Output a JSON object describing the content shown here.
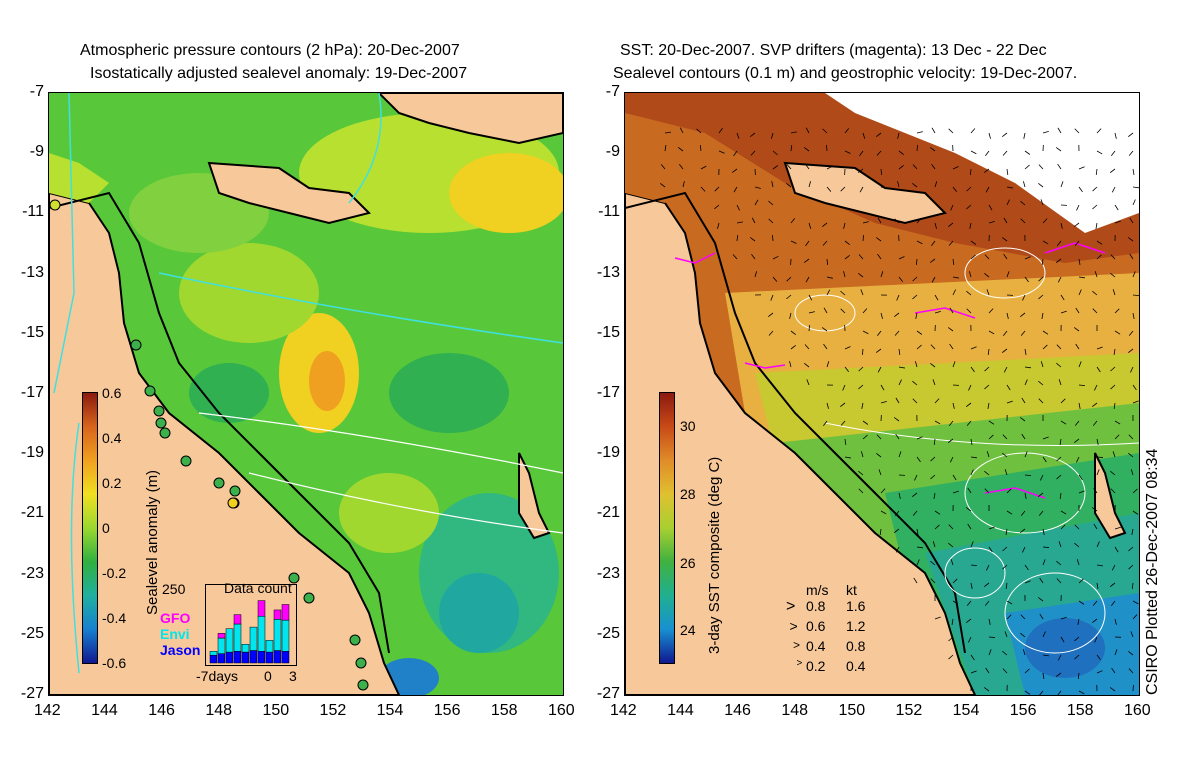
{
  "left_panel": {
    "title_line1": "Atmospheric pressure contours (2 hPa): 20-Dec-2007",
    "title_line2": "Isostatically adjusted sealevel anomaly: 19-Dec-2007",
    "colorbar_label": "Sealevel anomaly (m)",
    "colorbar_ticks": [
      "0.6",
      "0.4",
      "0.2",
      "0",
      "-0.2",
      "-0.4",
      "-0.6"
    ],
    "inset": {
      "title": "Data count",
      "ymax_label": "250",
      "x_labels": [
        "-7days",
        "0",
        "3"
      ],
      "legend": [
        {
          "name": "GFO",
          "color": "#ff00ff"
        },
        {
          "name": "Envi",
          "color": "#00e5ee"
        },
        {
          "name": "Jason",
          "color": "#0000ff"
        }
      ],
      "bars": [
        {
          "jason": 0.1,
          "envi": 0.05,
          "gfo": 0.0
        },
        {
          "jason": 0.12,
          "envi": 0.2,
          "gfo": 0.06
        },
        {
          "jason": 0.14,
          "envi": 0.3,
          "gfo": 0.0
        },
        {
          "jason": 0.15,
          "envi": 0.35,
          "gfo": 0.12
        },
        {
          "jason": 0.14,
          "envi": 0.1,
          "gfo": 0.0
        },
        {
          "jason": 0.16,
          "envi": 0.3,
          "gfo": 0.0
        },
        {
          "jason": 0.15,
          "envi": 0.45,
          "gfo": 0.2
        },
        {
          "jason": 0.14,
          "envi": 0.15,
          "gfo": 0.0
        },
        {
          "jason": 0.16,
          "envi": 0.4,
          "gfo": 0.12
        },
        {
          "jason": 0.15,
          "envi": 0.4,
          "gfo": 0.2
        }
      ]
    }
  },
  "right_panel": {
    "title_line1": "SST: 20-Dec-2007. SVP drifters (magenta): 13 Dec - 22 Dec",
    "title_line2": "Sealevel contours (0.1 m) and geostrophic velocity: 19-Dec-2007.",
    "colorbar_label": "3-day SST composite (deg C)",
    "colorbar_ticks": [
      "30",
      "28",
      "26",
      "24"
    ],
    "velocity_legend": {
      "header_ms": "m/s",
      "header_kt": "kt",
      "rows": [
        {
          "ms": "0.8",
          "kt": "1.6",
          "scale": 1.0
        },
        {
          "ms": "0.6",
          "kt": "1.2",
          "scale": 0.75
        },
        {
          "ms": "0.4",
          "kt": "0.8",
          "scale": 0.5
        },
        {
          "ms": "0.2",
          "kt": "0.4",
          "scale": 0.25
        }
      ]
    }
  },
  "axes": {
    "lat_labels": [
      "-7",
      "-9",
      "-11",
      "-13",
      "-15",
      "-17",
      "-19",
      "-21",
      "-23",
      "-25",
      "-27"
    ],
    "lon_labels": [
      "142",
      "144",
      "146",
      "148",
      "150",
      "152",
      "154",
      "156",
      "158",
      "160"
    ]
  },
  "credit": "CSIRO Plotted 26-Dec-2007 08:34",
  "colors": {
    "land": "#f7c89a",
    "coast": "#000000",
    "pressure_contour": "#40e0e0",
    "sealevel_contour": "#ffffff"
  }
}
